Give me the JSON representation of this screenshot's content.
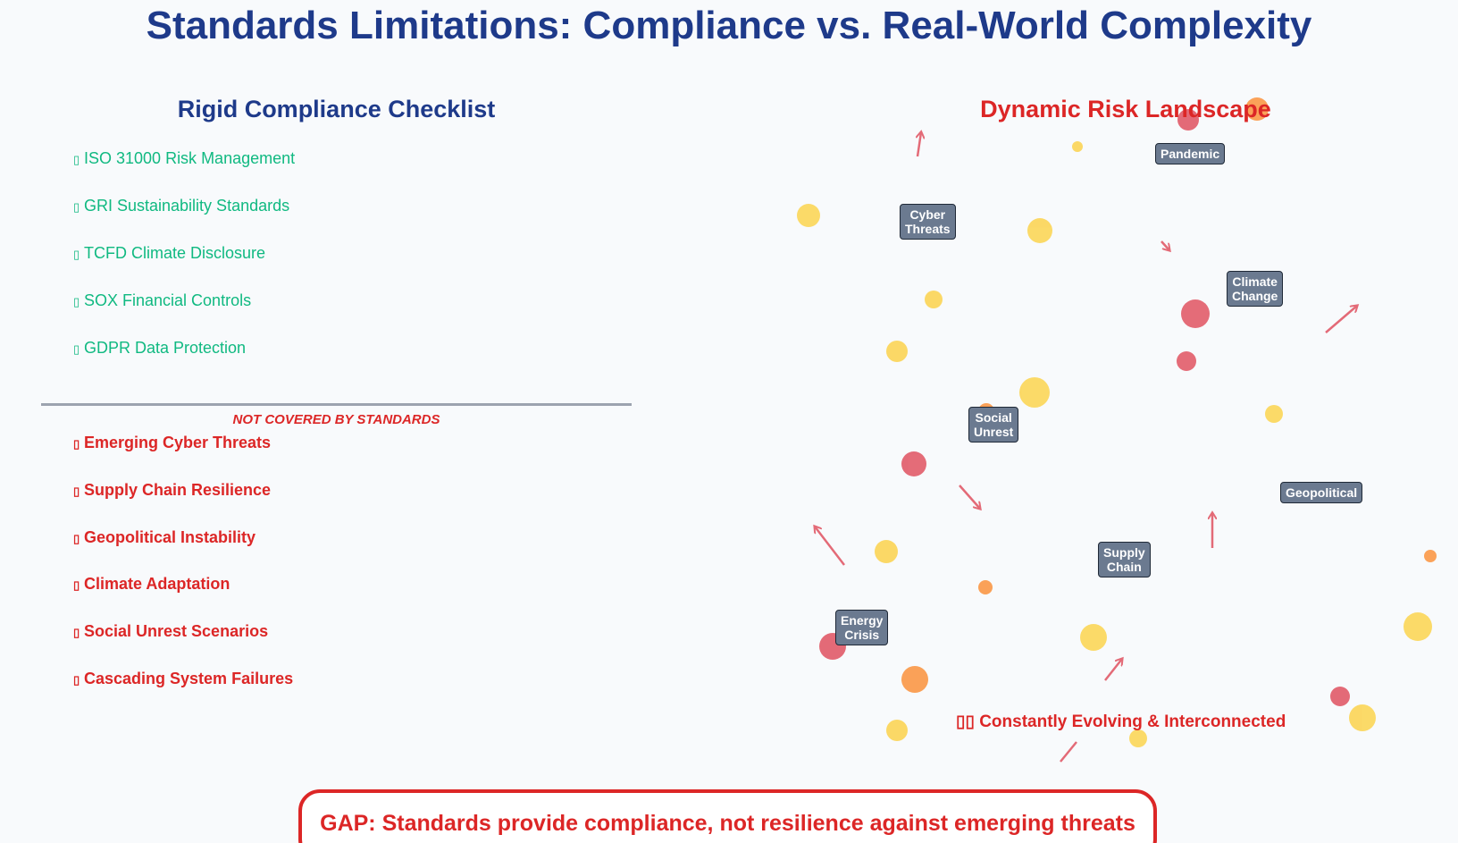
{
  "title": "Standards Limitations: Compliance vs. Real-World Complexity",
  "left_panel": {
    "heading": "Rigid Compliance Checklist",
    "standards": [
      {
        "mark": "▯",
        "label": "ISO 31000 Risk Management"
      },
      {
        "mark": "▯",
        "label": "GRI Sustainability Standards"
      },
      {
        "mark": "▯",
        "label": "TCFD Climate Disclosure"
      },
      {
        "mark": "▯",
        "label": "SOX Financial Controls"
      },
      {
        "mark": "▯",
        "label": "GDPR Data Protection"
      }
    ],
    "divider_caption": "NOT COVERED BY STANDARDS",
    "gaps": [
      {
        "mark": "▯",
        "label": "Emerging Cyber Threats"
      },
      {
        "mark": "▯",
        "label": "Supply Chain Resilience"
      },
      {
        "mark": "▯",
        "label": "Geopolitical Instability"
      },
      {
        "mark": "▯",
        "label": "Climate Adaptation"
      },
      {
        "mark": "▯",
        "label": "Social Unrest Scenarios"
      },
      {
        "mark": "▯",
        "label": "Cascading System Failures"
      }
    ]
  },
  "right_panel": {
    "heading": "Dynamic Risk Landscape",
    "risk_labels": [
      {
        "id": "pandemic",
        "text": "Pandemic"
      },
      {
        "id": "cyber-threats",
        "text": "Cyber\nThreats"
      },
      {
        "id": "climate-change",
        "text": "Climate\nChange"
      },
      {
        "id": "social-unrest",
        "text": "Social\nUnrest"
      },
      {
        "id": "geopolitical",
        "text": "Geopolitical"
      },
      {
        "id": "supply-chain",
        "text": "Supply\nChain"
      },
      {
        "id": "energy-crisis",
        "text": "Energy\nCrisis"
      }
    ],
    "footer_note": "▯▯ Constantly Evolving & Interconnected"
  },
  "gap_callout": "GAP: Standards provide compliance, not resilience against emerging threats",
  "colors": {
    "title": "#1e3a8a",
    "compliant": "#10b981",
    "risk": "#dc2626",
    "bubble_yellow": "#fcd34d",
    "bubble_orange": "#fb923c",
    "bubble_red": "#e05260",
    "label_bg": "#6b7a90",
    "background": "#f8fafc"
  }
}
